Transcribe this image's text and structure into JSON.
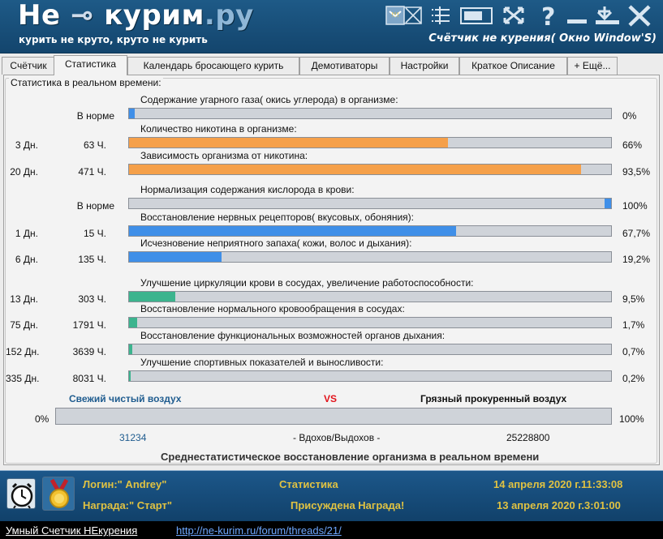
{
  "app": {
    "logo_prefix": "Не",
    "logo_main": "курим",
    "logo_suffix": ".ру",
    "tagline": "курить не круто, круто не курить",
    "window_title": "Счётчик не курения( Окно Window'S)"
  },
  "colors": {
    "title_bg": "#1e5a87",
    "footer_bg": "#1c578a",
    "accent_text": "#e0c242",
    "orange": "#f5a04a",
    "blue": "#3f8fe8",
    "green": "#3cb48e",
    "red": "#e2121a"
  },
  "tabs": [
    {
      "label": "Счётчик",
      "active": false
    },
    {
      "label": "Статистика",
      "active": true
    },
    {
      "label": "Календарь бросающего курить",
      "active": false
    },
    {
      "label": "Демотиваторы",
      "active": false
    },
    {
      "label": "Настройки",
      "active": false
    },
    {
      "label": "Краткое Описание",
      "active": false
    },
    {
      "label": "+ Ещё...",
      "active": false
    }
  ],
  "stats": {
    "legend": "Статистика в реальном времени:",
    "rows": [
      {
        "label": "Содержание угарного газа( окись углерода) в организме:",
        "norm": "В норме",
        "days": "",
        "hours": "",
        "pct": "0%",
        "fill": 0.012,
        "color": "#3f8fe8"
      },
      {
        "label": "Количество никотина в организме:",
        "norm": "",
        "days": "3 Дн.",
        "hours": "63 Ч.",
        "pct": "66%",
        "fill": 0.66,
        "color": "#f5a04a"
      },
      {
        "label": "Зависимость организма от никотина:",
        "norm": "",
        "days": "20 Дн.",
        "hours": "471 Ч.",
        "pct": "93,5%",
        "fill": 0.935,
        "color": "#f5a04a"
      },
      {
        "label": "Нормализация содержания кислорода в крови:",
        "norm": "В норме",
        "days": "",
        "hours": "",
        "pct": "100%",
        "fill": 0.013,
        "color": "#3f8fe8",
        "fill_right": true
      },
      {
        "label": "Восстановление нервных рецепторов( вкусовых, обоняния):",
        "norm": "",
        "days": "1 Дн.",
        "hours": "15 Ч.",
        "pct": "67,7%",
        "fill": 0.677,
        "color": "#3f8fe8"
      },
      {
        "label": "Исчезновение неприятного запаха( кожи, волос и дыхания):",
        "norm": "",
        "days": "6 Дн.",
        "hours": "135 Ч.",
        "pct": "19,2%",
        "fill": 0.192,
        "color": "#3f8fe8"
      },
      {
        "label": "Улучшение циркуляции крови в сосудах, увеличение работоспособности:",
        "norm": "",
        "days": "13 Дн.",
        "hours": "303 Ч.",
        "pct": "9,5%",
        "fill": 0.095,
        "color": "#3cb48e"
      },
      {
        "label": "Восстановление нормального кровообращения в сосудах:",
        "norm": "",
        "days": "75 Дн.",
        "hours": "1791 Ч.",
        "pct": "1,7%",
        "fill": 0.017,
        "color": "#3cb48e"
      },
      {
        "label": "Восстановление функциональных возможностей органов дыхания:",
        "norm": "",
        "days": "152 Дн.",
        "hours": "3639 Ч.",
        "pct": "0,7%",
        "fill": 0.007,
        "color": "#3cb48e"
      },
      {
        "label": "Улучшение спортивных показателей и выносливости:",
        "norm": "",
        "days": "335 Дн.",
        "hours": "8031 Ч.",
        "pct": "0,2%",
        "fill": 0.002,
        "color": "#3cb48e"
      }
    ]
  },
  "air": {
    "clean": "Свежий чистый воздух",
    "vs": "VS",
    "dirty": "Грязный прокуренный воздух",
    "left_pct": "0%",
    "right_pct": "100%",
    "fill": 0.0,
    "breaths_clean": "31234",
    "breaths_label": "- Вдохов/Выдохов -",
    "breaths_smoke": "25228800",
    "summary": "Среднестатистическое восстановление организма в реальном времени"
  },
  "footer": {
    "login": "Логин:\" Andrey\"",
    "award": "Награда:\" Старт\"",
    "section": "Статистика",
    "award_given": "Присуждена Награда!",
    "now": "14 апреля 2020 г.11:33:08",
    "start": "13 апреля 2020 г.3:01:00"
  },
  "statusbar": {
    "name": "Умный Счетчик НЕкурения",
    "link": "http://ne-kurim.ru/forum/threads/21/"
  }
}
